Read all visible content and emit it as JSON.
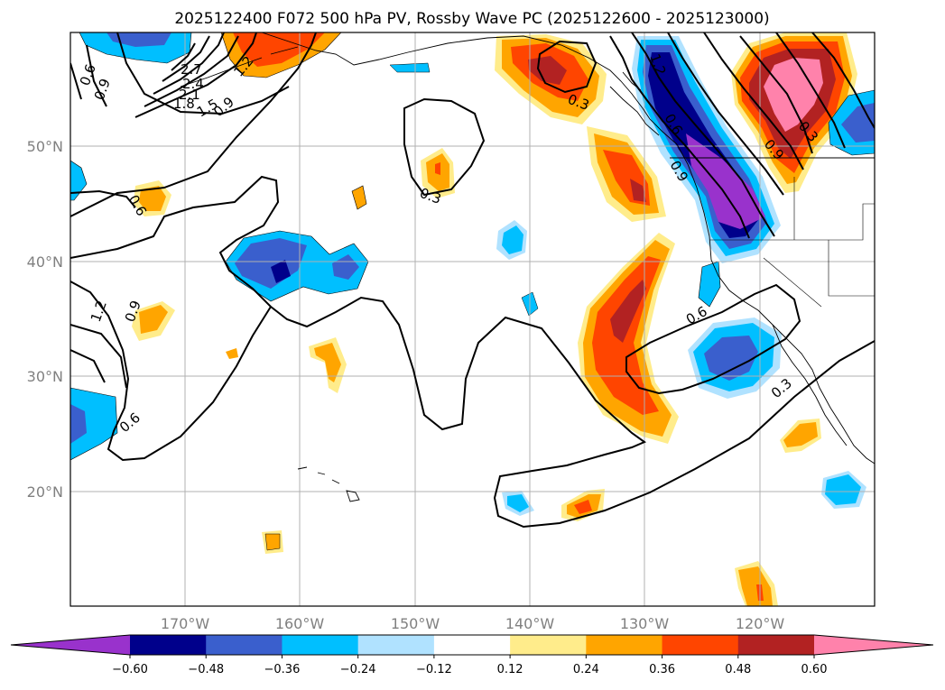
{
  "title": "2025122400 F072 500 hPa PV, Rossby Wave PC (2025122600 - 2025123000)",
  "lon_labels": [
    "170°W",
    "160°W",
    "150°W",
    "140°W",
    "130°W",
    "120°W"
  ],
  "lat_labels": [
    "50°N",
    "40°N",
    "30°N",
    "20°N"
  ],
  "colorbar": {
    "tick_labels": [
      "−0.60",
      "−0.48",
      "−0.36",
      "−0.24",
      "−0.12",
      "0.12",
      "0.24",
      "0.36",
      "0.48",
      "0.60"
    ],
    "colors": [
      "#9932cc",
      "#00008b",
      "#3a5fcd",
      "#00bfff",
      "#b0e2ff",
      "#ffffff",
      "#ffec8b",
      "#ffa500",
      "#ff4500",
      "#b22222",
      "#ff82ab"
    ]
  },
  "contour_labels": [
    "0.6",
    "0.9",
    "2.7",
    "2.4",
    "2.1",
    "1.8",
    "1.5",
    "1.2",
    "0.9",
    "0.6",
    "1.2",
    "0.9",
    "0.6",
    "0.3",
    "0.3",
    "0.6",
    "0.3",
    "0.9",
    "0.3",
    "0.6",
    "0.9",
    "1.2"
  ],
  "colors": {
    "grid": "#b0b0b0",
    "coast": "#000000"
  }
}
